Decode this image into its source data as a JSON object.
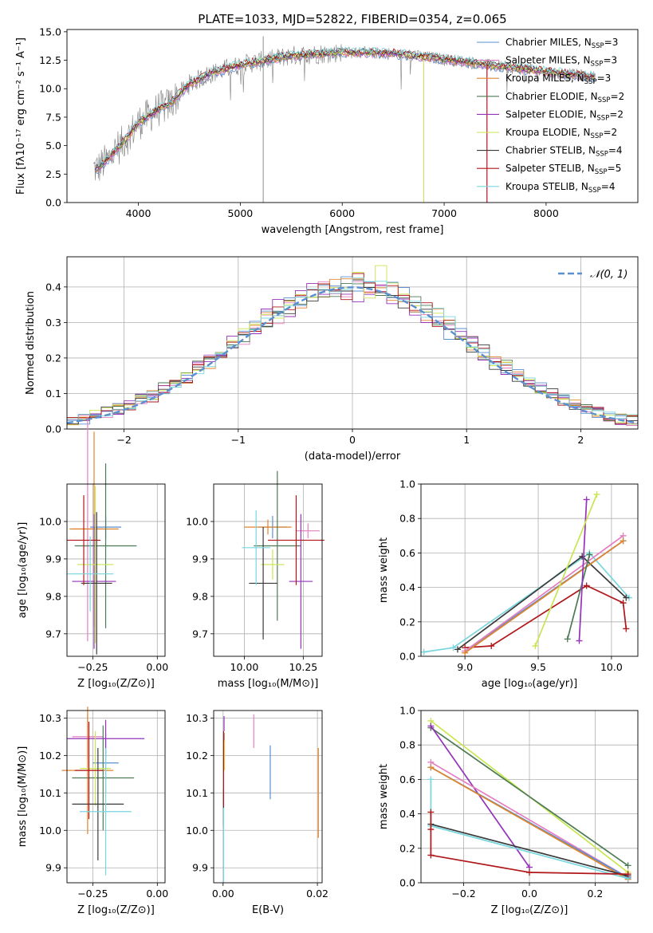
{
  "colors": {
    "chabrier_miles": "#5b8fd0",
    "salpeter_miles": "#e37ec1",
    "kroupa_miles": "#e0852c",
    "chabrier_elodie": "#4d7a55",
    "salpeter_elodie": "#9533b8",
    "kroupa_elodie": "#c7e650",
    "chabrier_stelib": "#3a3a3a",
    "salpeter_stelib": "#b0171a",
    "kroupa_stelib": "#78d6df",
    "data": "#808080",
    "gauss": "#5b8fd0",
    "grid": "#b0b0b0"
  },
  "chart_data": [
    {
      "id": "spectrum",
      "type": "line",
      "title": "PLATE=1033, MJD=52822, FIBERID=0354, z=0.065",
      "xlabel": "wavelength [Angstrom, rest frame]",
      "ylabel": "Flux [fλ10⁻¹⁷ erg cm⁻² s⁻¹ A⁻¹]",
      "xlim": [
        3300,
        8900
      ],
      "ylim": [
        0,
        15.2
      ],
      "xticks": [
        "4000",
        "5000",
        "6000",
        "7000",
        "8000"
      ],
      "yticks": [
        "0.0",
        "2.5",
        "5.0",
        "7.5",
        "10.0",
        "12.5",
        "15.0"
      ],
      "grid": false,
      "legend_position": "top-right",
      "legend": [
        {
          "key": "chabrier_miles",
          "label": "Chabrier MILES, N",
          "sub": "SSP",
          "tail": "=3"
        },
        {
          "key": "salpeter_miles",
          "label": "Salpeter MILES, N",
          "sub": "SSP",
          "tail": "=3"
        },
        {
          "key": "kroupa_miles",
          "label": "Kroupa MILES, N",
          "sub": "SSP",
          "tail": "=3"
        },
        {
          "key": "chabrier_elodie",
          "label": "Chabrier ELODIE, N",
          "sub": "SSP",
          "tail": "=2"
        },
        {
          "key": "salpeter_elodie",
          "label": "Salpeter ELODIE, N",
          "sub": "SSP",
          "tail": "=2"
        },
        {
          "key": "kroupa_elodie",
          "label": "Kroupa ELODIE, N",
          "sub": "SSP",
          "tail": "=2"
        },
        {
          "key": "chabrier_stelib",
          "label": "Chabrier STELIB, N",
          "sub": "SSP",
          "tail": "=4"
        },
        {
          "key": "salpeter_stelib",
          "label": "Salpeter STELIB, N",
          "sub": "SSP",
          "tail": "=5"
        },
        {
          "key": "kroupa_stelib",
          "label": "Kroupa STELIB, N",
          "sub": "SSP",
          "tail": "=4"
        }
      ],
      "continuum": {
        "wavelength": [
          3600,
          3700,
          3800,
          3900,
          4000,
          4100,
          4200,
          4300,
          4400,
          4500,
          4700,
          5000,
          5500,
          6000,
          6500,
          7000,
          7500,
          8000,
          8500
        ],
        "flux": [
          3.0,
          3.8,
          4.8,
          5.8,
          7.0,
          7.6,
          8.2,
          8.6,
          9.5,
          10.4,
          11.3,
          12.1,
          12.9,
          13.2,
          13.1,
          12.6,
          12.0,
          11.5,
          11.0
        ]
      },
      "features": [
        {
          "wavelength": 5225,
          "flux": 0.0,
          "note": "data spike"
        },
        {
          "wavelength": 6800,
          "flux": 0.0,
          "note": "kroupa_elodie dip"
        },
        {
          "wavelength": 7420,
          "flux": 0.0,
          "note": "salpeter_stelib dip"
        }
      ]
    },
    {
      "id": "residuals",
      "type": "step",
      "xlabel": "(data-model)/error",
      "ylabel": "Normed distribution",
      "xlim": [
        -2.5,
        2.5
      ],
      "ylim": [
        0,
        0.485
      ],
      "xticks": [
        "−2",
        "−1",
        "0",
        "1",
        "2"
      ],
      "yticks": [
        "0.0",
        "0.1",
        "0.2",
        "0.3",
        "0.4"
      ],
      "grid": true,
      "legend_position": "top-right",
      "gauss_label": "𝒩(0, 1)",
      "bin_width": 0.1,
      "model_order": [
        "chabrier_miles",
        "salpeter_miles",
        "kroupa_miles",
        "chabrier_elodie",
        "salpeter_elodie",
        "kroupa_elodie",
        "chabrier_stelib",
        "salpeter_stelib",
        "kroupa_stelib"
      ]
    },
    {
      "id": "age_vs_Z",
      "type": "errorbar",
      "xlabel": "Z [log₁₀(Z/Z⊙)]",
      "ylabel": "age  [log₁₀(age/yr)]",
      "xlim": [
        -0.35,
        0.03
      ],
      "ylim": [
        9.64,
        10.1
      ],
      "xticks": [
        "−0.25",
        "0.00"
      ],
      "yticks": [
        "9.7",
        "9.8",
        "9.9",
        "10.0"
      ],
      "grid": true,
      "points": [
        {
          "key": "chabrier_miles",
          "x": -0.2,
          "xerr": 0.06,
          "y": 9.985,
          "yerr": 0.03
        },
        {
          "key": "salpeter_miles",
          "x": -0.27,
          "xerr": 0.06,
          "y": 9.98,
          "yerr": 0.3
        },
        {
          "key": "kroupa_miles",
          "x": -0.245,
          "xerr": 0.095,
          "y": 9.98,
          "yerr": 0.26
        },
        {
          "key": "chabrier_elodie",
          "x": -0.2,
          "xerr": 0.12,
          "y": 9.935,
          "yerr": 0.22
        },
        {
          "key": "salpeter_elodie",
          "x": -0.245,
          "xerr": 0.085,
          "y": 9.84,
          "yerr": 0.18
        },
        {
          "key": "kroupa_elodie",
          "x": -0.24,
          "xerr": 0.07,
          "y": 9.885,
          "yerr": 0.21
        },
        {
          "key": "chabrier_stelib",
          "x": -0.235,
          "xerr": 0.06,
          "y": 9.835,
          "yerr": 0.19
        },
        {
          "key": "salpeter_stelib",
          "x": -0.285,
          "xerr": 0.065,
          "y": 9.95,
          "yerr": 0.12
        },
        {
          "key": "kroupa_stelib",
          "x": -0.26,
          "xerr": 0.09,
          "y": 9.86,
          "yerr": 0.1
        }
      ]
    },
    {
      "id": "age_vs_mass",
      "type": "errorbar",
      "xlabel": "mass [log₁₀(M/M⊙)]",
      "ylabel": "",
      "xlim": [
        9.87,
        10.33
      ],
      "ylim": [
        9.64,
        10.1
      ],
      "xticks": [
        "10.00",
        "10.25"
      ],
      "yticks": [
        "9.7",
        "9.8",
        "9.9",
        "10.0"
      ],
      "grid": true,
      "points": [
        {
          "key": "chabrier_miles",
          "x": 10.12,
          "xerr": 0.06,
          "y": 9.985,
          "yerr": 0.03
        },
        {
          "key": "salpeter_miles",
          "x": 10.27,
          "xerr": 0.05,
          "y": 9.975,
          "yerr": 0.02
        },
        {
          "key": "kroupa_miles",
          "x": 10.1,
          "xerr": 0.1,
          "y": 9.985,
          "yerr": 0.02
        },
        {
          "key": "chabrier_elodie",
          "x": 10.14,
          "xerr": 0.1,
          "y": 9.935,
          "yerr": 0.2
        },
        {
          "key": "salpeter_elodie",
          "x": 10.24,
          "xerr": 0.05,
          "y": 9.84,
          "yerr": 0.18
        },
        {
          "key": "kroupa_elodie",
          "x": 10.12,
          "xerr": 0.05,
          "y": 9.885,
          "yerr": 0.04
        },
        {
          "key": "chabrier_stelib",
          "x": 10.08,
          "xerr": 0.06,
          "y": 9.835,
          "yerr": 0.15
        },
        {
          "key": "salpeter_stelib",
          "x": 10.22,
          "xerr": 0.12,
          "y": 9.95,
          "yerr": 0.12
        },
        {
          "key": "kroupa_stelib",
          "x": 10.05,
          "xerr": 0.06,
          "y": 9.93,
          "yerr": 0.1
        }
      ]
    },
    {
      "id": "weight_vs_age",
      "type": "line",
      "xlabel": "age  [log₁₀(age/yr)]",
      "ylabel": "mass weight",
      "xlim": [
        8.7,
        10.18
      ],
      "ylim": [
        0,
        1.0
      ],
      "xticks": [
        "9.0",
        "9.5",
        "10.0"
      ],
      "yticks": [
        "0.0",
        "0.2",
        "0.4",
        "0.6",
        "0.8",
        "1.0"
      ],
      "grid": true,
      "series": [
        {
          "key": "kroupa_stelib",
          "x": [
            8.72,
            8.92,
            9.85,
            10.12
          ],
          "y": [
            0.025,
            0.05,
            0.6,
            0.34
          ]
        },
        {
          "key": "chabrier_stelib",
          "x": [
            8.95,
            9.8,
            10.1
          ],
          "y": [
            0.04,
            0.58,
            0.34
          ]
        },
        {
          "key": "salpeter_stelib",
          "x": [
            9.0,
            9.18,
            9.83,
            10.08,
            10.1
          ],
          "y": [
            0.05,
            0.06,
            0.41,
            0.31,
            0.16
          ]
        },
        {
          "key": "chabrier_miles",
          "x": [
            9.0,
            10.08
          ],
          "y": [
            0.03,
            0.67
          ]
        },
        {
          "key": "salpeter_miles",
          "x": [
            9.0,
            10.08
          ],
          "y": [
            0.03,
            0.7
          ]
        },
        {
          "key": "kroupa_miles",
          "x": [
            9.0,
            10.08
          ],
          "y": [
            0.02,
            0.67
          ]
        },
        {
          "key": "chabrier_elodie",
          "x": [
            9.7,
            9.85
          ],
          "y": [
            0.1,
            0.59
          ]
        },
        {
          "key": "salpeter_elodie",
          "x": [
            9.78,
            9.83
          ],
          "y": [
            0.09,
            0.91
          ]
        },
        {
          "key": "kroupa_elodie",
          "x": [
            9.48,
            9.9
          ],
          "y": [
            0.06,
            0.94
          ]
        }
      ]
    },
    {
      "id": "mass_vs_Z",
      "type": "errorbar",
      "xlabel": "Z [log₁₀(Z/Z⊙)]",
      "ylabel": "mass [log₁₀(M/M⊙)]",
      "xlim": [
        -0.35,
        0.03
      ],
      "ylim": [
        9.86,
        10.32
      ],
      "xticks": [
        "−0.25",
        "0.00"
      ],
      "yticks": [
        "9.9",
        "10.0",
        "10.1",
        "10.2",
        "10.3"
      ],
      "grid": true,
      "points": [
        {
          "key": "chabrier_miles",
          "x": -0.2,
          "xerr": 0.05,
          "y": 10.18,
          "yerr": 0.08
        },
        {
          "key": "salpeter_miles",
          "x": -0.27,
          "xerr": 0.06,
          "y": 10.25,
          "yerr": 0.06
        },
        {
          "key": "kroupa_miles",
          "x": -0.27,
          "xerr": 0.1,
          "y": 10.16,
          "yerr": 0.17
        },
        {
          "key": "chabrier_elodie",
          "x": -0.21,
          "xerr": 0.12,
          "y": 10.14,
          "yerr": 0.14
        },
        {
          "key": "salpeter_elodie",
          "x": -0.2,
          "xerr": 0.15,
          "y": 10.245,
          "yerr": 0.05
        },
        {
          "key": "kroupa_elodie",
          "x": -0.24,
          "xerr": 0.06,
          "y": 10.165,
          "yerr": 0.1
        },
        {
          "key": "chabrier_stelib",
          "x": -0.23,
          "xerr": 0.1,
          "y": 10.07,
          "yerr": 0.15
        },
        {
          "key": "salpeter_stelib",
          "x": -0.265,
          "xerr": 0.055,
          "y": 10.16,
          "yerr": 0.13
        },
        {
          "key": "kroupa_stelib",
          "x": -0.2,
          "xerr": 0.1,
          "y": 10.05,
          "yerr": 0.17
        }
      ]
    },
    {
      "id": "mass_vs_ebv",
      "type": "errorbar",
      "xlabel": "E(B-V)",
      "ylabel": "",
      "xlim": [
        -0.002,
        0.021
      ],
      "ylim": [
        9.86,
        10.32
      ],
      "xticks": [
        "0.00",
        "0.02"
      ],
      "yticks": [
        "9.9",
        "10.0",
        "10.1",
        "10.2",
        "10.3"
      ],
      "grid": true,
      "points": [
        {
          "key": "chabrier_miles",
          "x": 0.01,
          "xerr": 0,
          "y": 10.155,
          "yerr": 0.072
        },
        {
          "key": "salpeter_miles",
          "x": 0.0065,
          "xerr": 0,
          "y": 10.265,
          "yerr": 0.045
        },
        {
          "key": "kroupa_miles",
          "x": 0.0202,
          "xerr": 0,
          "y": 10.1,
          "yerr": 0.12
        },
        {
          "key": "chabrier_elodie",
          "x": 0.0002,
          "xerr": 0,
          "y": 10.24,
          "yerr": 0.02
        },
        {
          "key": "salpeter_elodie",
          "x": 0.0002,
          "xerr": 0,
          "y": 10.285,
          "yerr": 0.02
        },
        {
          "key": "kroupa_elodie",
          "x": 0.0003,
          "xerr": 0,
          "y": 10.2,
          "yerr": 0.04
        },
        {
          "key": "chabrier_stelib",
          "x": 0.0001,
          "xerr": 0,
          "y": 10.06,
          "yerr": 0.05
        },
        {
          "key": "salpeter_stelib",
          "x": 0.0001,
          "xerr": 0,
          "y": 10.165,
          "yerr": 0.1
        },
        {
          "key": "kroupa_stelib",
          "x": 0.0001,
          "xerr": 0,
          "y": 9.96,
          "yerr": 0.1
        }
      ]
    },
    {
      "id": "weight_vs_Z",
      "type": "line",
      "xlabel": "Z [log₁₀(Z/Z⊙)]",
      "ylabel": "mass weight",
      "xlim": [
        -0.33,
        0.33
      ],
      "ylim": [
        0,
        1.0
      ],
      "xticks": [
        "−0.2",
        "0.0",
        "0.2"
      ],
      "yticks": [
        "0.0",
        "0.2",
        "0.4",
        "0.6",
        "0.8",
        "1.0"
      ],
      "grid": true,
      "series": [
        {
          "key": "kroupa_elodie",
          "x": [
            -0.3,
            0.3
          ],
          "y": [
            0.94,
            0.06
          ]
        },
        {
          "key": "chabrier_elodie",
          "x": [
            -0.3,
            0.3
          ],
          "y": [
            0.9,
            0.1
          ]
        },
        {
          "key": "salpeter_elodie",
          "x": [
            -0.3,
            0.0
          ],
          "y": [
            0.91,
            0.09
          ]
        },
        {
          "key": "salpeter_miles",
          "x": [
            -0.3,
            0.3
          ],
          "y": [
            0.7,
            0.03
          ]
        },
        {
          "key": "chabrier_miles",
          "x": [
            -0.3,
            0.3
          ],
          "y": [
            0.67,
            0.03
          ]
        },
        {
          "key": "kroupa_miles",
          "x": [
            -0.3,
            0.3
          ],
          "y": [
            0.67,
            0.02
          ]
        },
        {
          "key": "chabrier_stelib",
          "x": [
            -0.3,
            0.3
          ],
          "y": [
            0.34,
            0.04
          ]
        },
        {
          "key": "kroupa_stelib",
          "x": [
            -0.3,
            -0.3,
            0.3
          ],
          "y": [
            0.6,
            0.33,
            0.025
          ]
        },
        {
          "key": "salpeter_stelib",
          "x": [
            -0.3,
            -0.3,
            -0.3,
            0.0,
            0.3
          ],
          "y": [
            0.41,
            0.31,
            0.16,
            0.06,
            0.05
          ]
        }
      ]
    }
  ]
}
